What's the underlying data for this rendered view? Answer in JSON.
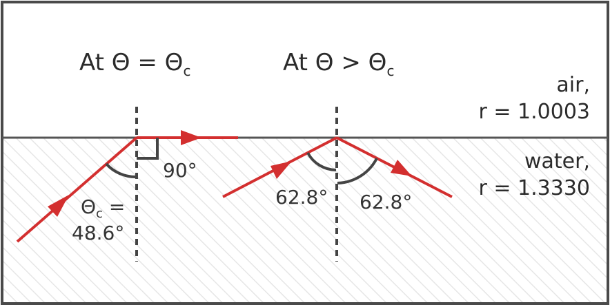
{
  "left_panel": {
    "title_main": "At Θ = Θ",
    "title_sub": "c",
    "right_angle_label": "90°",
    "critical_label_main": "Θ",
    "critical_label_sub": "c",
    "critical_label_eq": " =",
    "critical_value": "48.6°"
  },
  "right_panel": {
    "title_main": "At Θ > Θ",
    "title_sub": "c",
    "incident_angle": "62.8°",
    "reflected_angle": "62.8°"
  },
  "media": {
    "top_name": "air,",
    "top_index": "r = 1.0003",
    "bottom_name": "water,",
    "bottom_index": "r = 1.3330"
  },
  "colors": {
    "ray": "#d32f2f",
    "border": "#4a4a4a",
    "text": "#333333",
    "water_hatch": "#e6e6e6"
  }
}
